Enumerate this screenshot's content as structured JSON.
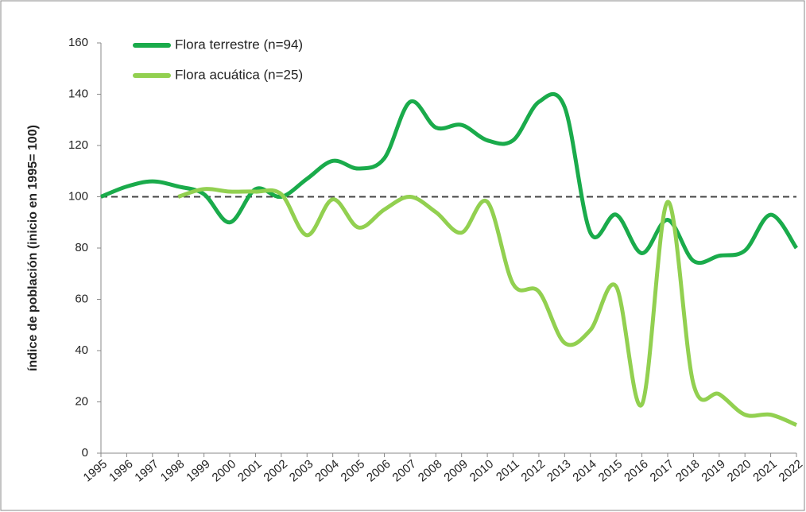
{
  "chart_data": {
    "type": "line",
    "y_label": "índice de población (inicio en 1995= 100)",
    "x": [
      1995,
      1996,
      1997,
      1998,
      1999,
      2000,
      2001,
      2002,
      2003,
      2004,
      2005,
      2006,
      2007,
      2008,
      2009,
      2010,
      2011,
      2012,
      2013,
      2014,
      2015,
      2016,
      2017,
      2018,
      2019,
      2020,
      2021,
      2022
    ],
    "series": [
      {
        "name": "Flora terrestre (n=94)",
        "color": "#1aab4b",
        "values": [
          100,
          104,
          106,
          104,
          101,
          90,
          103,
          100,
          107,
          114,
          111,
          115,
          137,
          127,
          128,
          122,
          122,
          137,
          135,
          86,
          93,
          78,
          91,
          75,
          77,
          79,
          93,
          80
        ]
      },
      {
        "name": "Flora acuática (n=25)",
        "color": "#92d050",
        "values": [
          null,
          null,
          null,
          100,
          103,
          102,
          102,
          101,
          85,
          99,
          88,
          95,
          100,
          94,
          86,
          98,
          66,
          63,
          43,
          48,
          65,
          19,
          98,
          27,
          23,
          15,
          15,
          11
        ]
      }
    ],
    "xlim": [
      1995,
      2022
    ],
    "xticks": [
      1995,
      1996,
      1997,
      1998,
      1999,
      2000,
      2001,
      2002,
      2003,
      2004,
      2005,
      2006,
      2007,
      2008,
      2009,
      2010,
      2011,
      2012,
      2013,
      2014,
      2015,
      2016,
      2017,
      2018,
      2019,
      2020,
      2021,
      2022
    ],
    "ylim": [
      0,
      160
    ],
    "yticks": [
      0,
      20,
      40,
      60,
      80,
      100,
      120,
      140,
      160
    ],
    "reference_line": 100,
    "grid": false
  }
}
